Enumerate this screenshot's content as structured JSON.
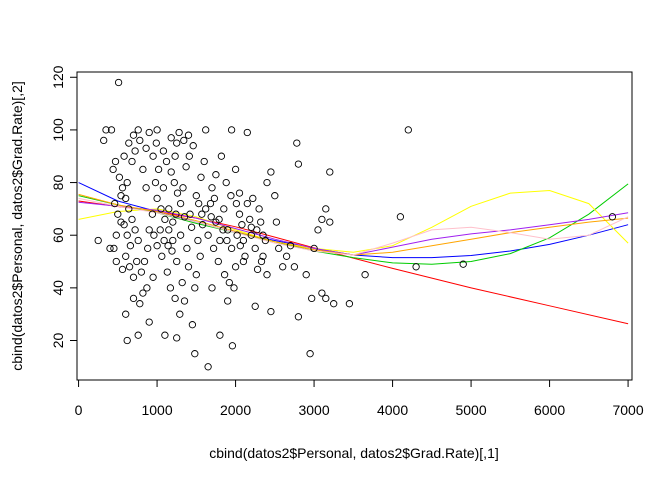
{
  "chart_data": {
    "type": "scatter",
    "title": "",
    "xlabel": "cbind(datos2$Personal, datos2$Grad.Rate)[,1]",
    "ylabel": "cbind(datos2$Personal, datos2$Grad.Rate)[,2]",
    "xlim": [
      -20,
      7050
    ],
    "ylim": [
      5,
      122
    ],
    "x_ticks": [
      0,
      1000,
      2000,
      3000,
      4000,
      5000,
      6000,
      7000
    ],
    "y_ticks": [
      20,
      40,
      60,
      80,
      100,
      120
    ],
    "grid": false,
    "legend": "none",
    "point_style": "open-circle",
    "points": [
      [
        510,
        118
      ],
      [
        250,
        58
      ],
      [
        320,
        96
      ],
      [
        350,
        100
      ],
      [
        420,
        100
      ],
      [
        900,
        99
      ],
      [
        1000,
        100
      ],
      [
        1400,
        98
      ],
      [
        1620,
        100
      ],
      [
        1950,
        100
      ],
      [
        2150,
        99
      ],
      [
        2780,
        95
      ],
      [
        4200,
        100
      ],
      [
        1180,
        97
      ],
      [
        1250,
        95
      ],
      [
        1280,
        99
      ],
      [
        1340,
        96
      ],
      [
        400,
        55
      ],
      [
        450,
        55
      ],
      [
        600,
        30
      ],
      [
        620,
        20
      ],
      [
        1100,
        22
      ],
      [
        1250,
        21
      ],
      [
        1480,
        15
      ],
      [
        1650,
        10
      ],
      [
        1800,
        22
      ],
      [
        1960,
        18
      ],
      [
        2250,
        33
      ],
      [
        2450,
        31
      ],
      [
        2800,
        29
      ],
      [
        2950,
        15
      ],
      [
        2970,
        36
      ],
      [
        3100,
        38
      ],
      [
        3150,
        36
      ],
      [
        3250,
        34
      ],
      [
        3450,
        34
      ],
      [
        3650,
        45
      ],
      [
        2900,
        45
      ],
      [
        3000,
        55
      ],
      [
        3050,
        62
      ],
      [
        3100,
        66
      ],
      [
        3150,
        70
      ],
      [
        3200,
        65
      ],
      [
        3200,
        84
      ],
      [
        2800,
        87
      ],
      [
        4100,
        67
      ],
      [
        4300,
        48
      ],
      [
        4900,
        49
      ],
      [
        6800,
        67
      ],
      [
        2400,
        80
      ],
      [
        2450,
        84
      ],
      [
        2500,
        75
      ],
      [
        2520,
        65
      ],
      [
        2300,
        70
      ],
      [
        2350,
        60
      ],
      [
        2200,
        63
      ],
      [
        2100,
        50
      ],
      [
        2000,
        48
      ],
      [
        1900,
        35
      ],
      [
        1700,
        40
      ],
      [
        1500,
        45
      ],
      [
        1450,
        26
      ],
      [
        1350,
        35
      ],
      [
        900,
        27
      ],
      [
        760,
        22
      ],
      [
        820,
        38
      ],
      [
        700,
        44
      ],
      [
        560,
        47
      ],
      [
        480,
        50
      ],
      [
        540,
        75
      ],
      [
        620,
        80
      ],
      [
        680,
        88
      ],
      [
        720,
        92
      ],
      [
        780,
        96
      ],
      [
        820,
        85
      ],
      [
        860,
        78
      ],
      [
        950,
        90
      ],
      [
        1020,
        85
      ],
      [
        1080,
        78
      ],
      [
        1150,
        70
      ],
      [
        1200,
        65
      ],
      [
        1300,
        60
      ],
      [
        1380,
        55
      ],
      [
        1420,
        68
      ],
      [
        1500,
        75
      ],
      [
        1560,
        82
      ],
      [
        1600,
        88
      ],
      [
        1680,
        72
      ],
      [
        1750,
        65
      ],
      [
        1800,
        58
      ],
      [
        1850,
        70
      ],
      [
        1900,
        62
      ],
      [
        1950,
        55
      ],
      [
        2050,
        68
      ],
      [
        2100,
        58
      ],
      [
        2150,
        72
      ],
      [
        2250,
        55
      ],
      [
        2280,
        47
      ],
      [
        2350,
        52
      ],
      [
        2400,
        45
      ],
      [
        2550,
        55
      ],
      [
        2600,
        48
      ],
      [
        2650,
        52
      ],
      [
        2700,
        56
      ],
      [
        2750,
        48
      ],
      [
        1700,
        78
      ],
      [
        1750,
        83
      ],
      [
        1820,
        90
      ],
      [
        1880,
        80
      ],
      [
        2000,
        85
      ],
      [
        2050,
        76
      ],
      [
        1650,
        60
      ],
      [
        1550,
        52
      ],
      [
        1480,
        40
      ],
      [
        1400,
        48
      ],
      [
        1320,
        42
      ],
      [
        1250,
        50
      ],
      [
        1200,
        58
      ],
      [
        1150,
        62
      ],
      [
        1100,
        66
      ],
      [
        1050,
        70
      ],
      [
        1000,
        74
      ],
      [
        980,
        80
      ],
      [
        940,
        68
      ],
      [
        900,
        62
      ],
      [
        880,
        55
      ],
      [
        840,
        50
      ],
      [
        800,
        46
      ],
      [
        760,
        58
      ],
      [
        720,
        62
      ],
      [
        680,
        66
      ],
      [
        640,
        70
      ],
      [
        600,
        74
      ],
      [
        560,
        78
      ],
      [
        520,
        82
      ],
      [
        580,
        90
      ],
      [
        640,
        95
      ],
      [
        700,
        98
      ],
      [
        760,
        100
      ],
      [
        860,
        93
      ],
      [
        1120,
        88
      ],
      [
        1180,
        84
      ],
      [
        1220,
        80
      ],
      [
        1260,
        76
      ],
      [
        1300,
        72
      ],
      [
        1350,
        67
      ],
      [
        1440,
        63
      ],
      [
        1520,
        58
      ],
      [
        1580,
        64
      ],
      [
        1620,
        70
      ],
      [
        1720,
        55
      ],
      [
        1780,
        50
      ],
      [
        1860,
        45
      ],
      [
        1920,
        42
      ],
      [
        1980,
        40
      ],
      [
        2020,
        60
      ],
      [
        2080,
        64
      ],
      [
        2180,
        66
      ],
      [
        2220,
        74
      ],
      [
        2320,
        65
      ],
      [
        2380,
        58
      ],
      [
        1000,
        56
      ],
      [
        1060,
        52
      ],
      [
        1130,
        46
      ],
      [
        1170,
        40
      ],
      [
        1230,
        36
      ],
      [
        1290,
        30
      ],
      [
        950,
        44
      ],
      [
        870,
        40
      ],
      [
        780,
        34
      ],
      [
        700,
        36
      ],
      [
        660,
        56
      ],
      [
        620,
        60
      ],
      [
        580,
        64
      ],
      [
        500,
        68
      ],
      [
        480,
        60
      ],
      [
        460,
        72
      ],
      [
        440,
        85
      ],
      [
        470,
        88
      ],
      [
        540,
        65
      ],
      [
        600,
        52
      ],
      [
        650,
        48
      ],
      [
        740,
        50
      ],
      [
        960,
        60
      ],
      [
        1040,
        62
      ],
      [
        1090,
        58
      ],
      [
        1140,
        56
      ],
      [
        1190,
        54
      ],
      [
        1240,
        68
      ],
      [
        1330,
        78
      ],
      [
        1370,
        86
      ],
      [
        1410,
        90
      ],
      [
        1460,
        94
      ],
      [
        1530,
        72
      ],
      [
        1570,
        68
      ],
      [
        1690,
        67
      ],
      [
        1730,
        74
      ],
      [
        1790,
        66
      ],
      [
        1840,
        62
      ],
      [
        1890,
        58
      ],
      [
        1940,
        75
      ],
      [
        2010,
        72
      ],
      [
        2060,
        56
      ],
      [
        2120,
        52
      ],
      [
        2200,
        60
      ],
      [
        2270,
        62
      ],
      [
        2330,
        50
      ],
      [
        1230,
        90
      ],
      [
        1080,
        92
      ],
      [
        990,
        95
      ]
    ],
    "series": [
      {
        "color": "#ff0000",
        "x": [
          0,
          500,
          1000,
          1500,
          2000,
          2500,
          3000,
          3500,
          4000,
          5000,
          6000,
          7000
        ],
        "y": [
          73.0,
          70.9,
          68.9,
          66.5,
          63.2,
          59.3,
          55.2,
          51.3,
          47.4,
          40.0,
          33.2,
          26.4
        ]
      },
      {
        "color": "#0000ff",
        "x": [
          0,
          500,
          1000,
          1500,
          2000,
          2500,
          3000,
          3500,
          4000,
          4500,
          5000,
          5500,
          6000,
          6500,
          7000
        ],
        "y": [
          80.0,
          73.0,
          69.0,
          65.0,
          61.0,
          58.0,
          55.0,
          52.5,
          51.5,
          51.5,
          52.3,
          54.0,
          56.5,
          60.0,
          64.0
        ]
      },
      {
        "color": "#00cc00",
        "x": [
          0,
          500,
          1000,
          1500,
          2000,
          2500,
          3000,
          3500,
          4000,
          4500,
          5000,
          5500,
          6000,
          6500,
          7000
        ],
        "y": [
          75.0,
          71.5,
          68.5,
          64.5,
          61.0,
          57.5,
          54.0,
          51.5,
          49.5,
          49.0,
          50.0,
          53.0,
          59.0,
          68.0,
          79.5
        ]
      },
      {
        "color": "#ffff00",
        "x": [
          0,
          500,
          1000,
          1500,
          2000,
          2500,
          3000,
          3500,
          4000,
          4500,
          5000,
          5500,
          6000,
          6500,
          7000
        ],
        "y": [
          66.0,
          69.0,
          70.0,
          67.0,
          62.0,
          57.5,
          55.0,
          53.5,
          56.0,
          63.0,
          71.0,
          76.0,
          77.0,
          72.0,
          57.0
        ]
      },
      {
        "color": "#a020f0",
        "x": [
          0,
          500,
          1000,
          1500,
          2000,
          2500,
          3000,
          3500,
          4000,
          4500,
          5000,
          5500,
          6000,
          6500,
          7000
        ],
        "y": [
          72.5,
          71.0,
          69.5,
          66.5,
          62.5,
          58.5,
          55.0,
          52.5,
          55.5,
          58.5,
          60.5,
          62.0,
          64.0,
          66.0,
          68.5
        ]
      },
      {
        "color": "#ffa500",
        "x": [
          0,
          500,
          1000,
          1500,
          2000,
          2500,
          3000,
          3500,
          4000,
          4500,
          5000,
          5500,
          6000,
          6500,
          7000
        ],
        "y": [
          75.5,
          71.5,
          69.0,
          65.5,
          61.5,
          57.5,
          54.5,
          52.5,
          53.5,
          56.0,
          58.5,
          61.0,
          63.0,
          65.0,
          66.5
        ]
      },
      {
        "color": "#ffc0cb",
        "x": [
          0,
          500,
          1000,
          1500,
          2000,
          2500,
          3000,
          3500,
          4000,
          4500,
          5000,
          5500,
          6000,
          6500,
          7000
        ],
        "y": [
          74.0,
          71.0,
          68.5,
          65.0,
          61.0,
          57.0,
          54.0,
          52.5,
          57.0,
          62.0,
          63.0,
          61.0,
          58.5,
          60.0,
          67.0
        ]
      }
    ]
  }
}
